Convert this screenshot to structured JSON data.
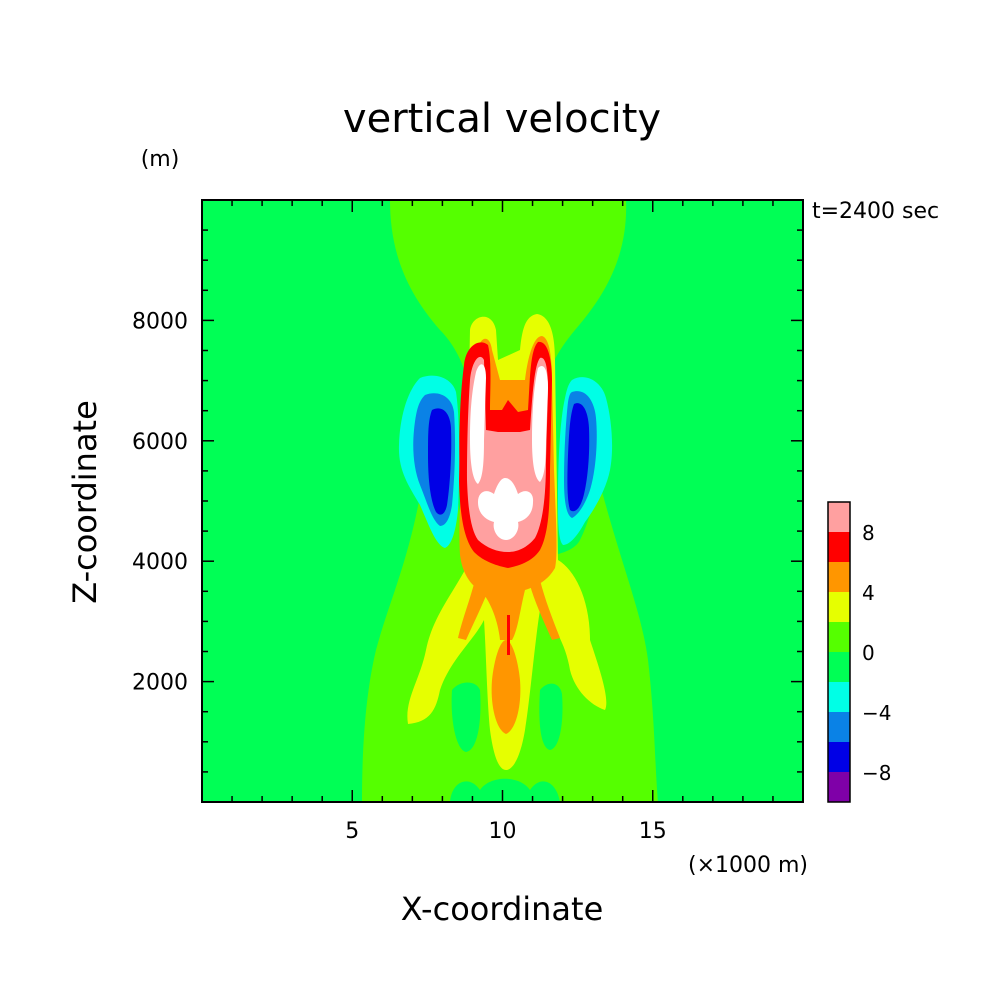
{
  "chart_data": {
    "type": "heatmap",
    "title": "vertical velocity",
    "time_label": "t=2400 sec",
    "xlabel": "X-coordinate",
    "ylabel": "Z-coordinate",
    "x_unit": "(×1000 m)",
    "y_unit": "(m)",
    "xlim": [
      0,
      20
    ],
    "ylim": [
      0,
      10000
    ],
    "x_ticks": [
      5,
      10,
      15
    ],
    "y_ticks": [
      2000,
      4000,
      6000,
      8000
    ],
    "x_tick_labels": [
      "5",
      "10",
      "15"
    ],
    "y_tick_labels": [
      "2000",
      "4000",
      "6000",
      "8000"
    ],
    "background_level": "0 to 2",
    "levels": [
      -10,
      -8,
      -6,
      -4,
      -2,
      0,
      2,
      4,
      6,
      8,
      10
    ],
    "level_colors": [
      "#7f00a8",
      "#0000e6",
      "#0a82e6",
      "#00ffe6",
      "#00ff55",
      "#55ff00",
      "#e6ff00",
      "#ff9600",
      "#ff0000",
      "#ffa0a0"
    ],
    "above_max_color": "#ffffff",
    "colorbar_tick_labels": [
      "8",
      "4",
      "0",
      "−4",
      "−8"
    ],
    "features": [
      {
        "name": "central updraft core",
        "x_center": 10.2,
        "z_center": 5000,
        "w_max": "above 10"
      },
      {
        "name": "left updraft lobe",
        "x_center": 9.3,
        "z_center": 6200,
        "w_max": "above 10"
      },
      {
        "name": "right updraft lobe",
        "x_center": 11.3,
        "z_center": 6200,
        "w_max": "above 10"
      },
      {
        "name": "left downdraft",
        "x_center": 7.9,
        "z_center": 5900,
        "w_min": "-8 to -6"
      },
      {
        "name": "right downdraft",
        "x_center": 12.5,
        "z_center": 5900,
        "w_min": "-8 to -6"
      },
      {
        "name": "lower central updraft",
        "x_center": 10.1,
        "z_center": 1600,
        "w_max": "4 to 6"
      }
    ]
  }
}
